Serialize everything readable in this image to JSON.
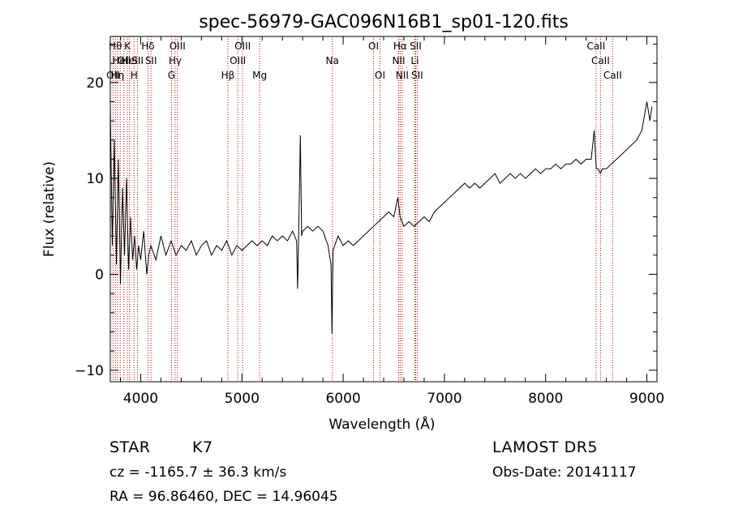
{
  "chart_data": {
    "type": "line",
    "title": "spec-56979-GAC096N16B1_sp01-120.fits",
    "xlabel": "Wavelength (Å)",
    "ylabel": "Flux (relative)",
    "xlim": [
      3700,
      9100
    ],
    "ylim": [
      -11.2,
      24.8
    ],
    "xticks": [
      4000,
      5000,
      6000,
      7000,
      8000,
      9000
    ],
    "yticks": [
      -10,
      0,
      10,
      20
    ],
    "grid": false,
    "line_color": "#000000",
    "marker_color": "#cc0000",
    "series": [
      {
        "x": [
          3700,
          3720,
          3740,
          3760,
          3780,
          3800,
          3820,
          3840,
          3860,
          3880,
          3900,
          3920,
          3940,
          3960,
          3980,
          4000,
          4030,
          4060,
          4080,
          4100,
          4150,
          4200,
          4250,
          4300,
          4350,
          4400,
          4450,
          4500,
          4550,
          4600,
          4650,
          4700,
          4750,
          4800,
          4850,
          4900,
          4950,
          5000,
          5050,
          5100,
          5150,
          5200,
          5250,
          5300,
          5350,
          5400,
          5450,
          5500,
          5540,
          5550,
          5560,
          5577,
          5590,
          5600,
          5650,
          5700,
          5750,
          5800,
          5850,
          5880,
          5890,
          5900,
          5950,
          6000,
          6050,
          6100,
          6150,
          6200,
          6250,
          6300,
          6350,
          6400,
          6450,
          6500,
          6540,
          6563,
          6580,
          6600,
          6650,
          6700,
          6750,
          6800,
          6850,
          6900,
          6950,
          7000,
          7050,
          7100,
          7150,
          7200,
          7250,
          7300,
          7350,
          7400,
          7450,
          7500,
          7550,
          7600,
          7650,
          7700,
          7750,
          7800,
          7850,
          7900,
          7950,
          8000,
          8050,
          8100,
          8150,
          8200,
          8250,
          8300,
          8350,
          8400,
          8450,
          8480,
          8500,
          8520,
          8540,
          8560,
          8600,
          8650,
          8700,
          8750,
          8800,
          8850,
          8900,
          8950,
          9000,
          9030,
          9050
        ],
        "y": [
          17.5,
          3.0,
          14.0,
          1.0,
          12.0,
          -1.0,
          9.0,
          2.0,
          10.0,
          0.5,
          6.0,
          1.5,
          4.0,
          0.5,
          3.0,
          1.5,
          4.5,
          0.0,
          2.0,
          3.0,
          1.5,
          4.0,
          2.0,
          3.5,
          2.0,
          3.0,
          2.5,
          3.5,
          2.0,
          3.0,
          3.5,
          2.0,
          3.0,
          2.5,
          3.5,
          2.0,
          3.0,
          2.5,
          3.0,
          3.5,
          3.0,
          3.5,
          3.0,
          4.0,
          3.5,
          4.0,
          3.5,
          4.5,
          3.5,
          -1.5,
          4.0,
          14.5,
          4.0,
          4.5,
          5.0,
          4.5,
          5.0,
          4.5,
          3.0,
          1.0,
          -6.2,
          2.5,
          4.0,
          3.0,
          3.5,
          3.0,
          3.5,
          4.0,
          4.5,
          5.0,
          5.5,
          6.0,
          6.5,
          6.0,
          8.0,
          6.0,
          5.5,
          5.0,
          5.5,
          5.0,
          5.5,
          6.0,
          5.5,
          6.5,
          7.0,
          7.5,
          8.0,
          8.5,
          9.0,
          9.5,
          9.0,
          9.5,
          9.0,
          9.5,
          10.0,
          10.5,
          9.5,
          10.0,
          10.5,
          10.0,
          10.5,
          10.0,
          10.5,
          11.0,
          10.5,
          11.0,
          11.0,
          11.5,
          11.0,
          11.5,
          11.5,
          12.0,
          11.5,
          12.0,
          12.0,
          15.0,
          11.0,
          11.0,
          10.5,
          11.0,
          11.0,
          11.5,
          12.0,
          12.5,
          13.0,
          13.5,
          14.0,
          15.0,
          18.0,
          16.0,
          17.5
        ]
      }
    ],
    "lines": [
      {
        "wl": 3727,
        "label": "OII",
        "row": 3
      },
      {
        "wl": 3750,
        "label": "Hθ",
        "row": 1
      },
      {
        "wl": 3771,
        "label": "Hη",
        "row": 3
      },
      {
        "wl": 3798,
        "label": "Hel",
        "row": 2
      },
      {
        "wl": 3835,
        "label": "OII",
        "row": 2
      },
      {
        "wl": 3869,
        "label": "K",
        "row": 1
      },
      {
        "wl": 3889,
        "label": "Hel",
        "row": 2
      },
      {
        "wl": 3934,
        "label": "H",
        "row": 3
      },
      {
        "wl": 3969,
        "label": "SII",
        "row": 2
      },
      {
        "wl": 4072,
        "label": "Hδ",
        "row": 1
      },
      {
        "wl": 4102,
        "label": "SII",
        "row": 2
      },
      {
        "wl": 4304,
        "label": "G",
        "row": 3
      },
      {
        "wl": 4340,
        "label": "Hγ",
        "row": 2
      },
      {
        "wl": 4363,
        "label": "OIII",
        "row": 1
      },
      {
        "wl": 4861,
        "label": "Hβ",
        "row": 3
      },
      {
        "wl": 4959,
        "label": "OIII",
        "row": 2
      },
      {
        "wl": 5007,
        "label": "OIII",
        "row": 1
      },
      {
        "wl": 5175,
        "label": "Mg",
        "row": 3
      },
      {
        "wl": 5893,
        "label": "Na",
        "row": 2
      },
      {
        "wl": 6300,
        "label": "OI",
        "row": 1
      },
      {
        "wl": 6364,
        "label": "OI",
        "row": 3
      },
      {
        "wl": 6548,
        "label": "NII",
        "row": 2
      },
      {
        "wl": 6563,
        "label": "Hα",
        "row": 1
      },
      {
        "wl": 6583,
        "label": "NII",
        "row": 3
      },
      {
        "wl": 6708,
        "label": "Li",
        "row": 2
      },
      {
        "wl": 6716,
        "label": "SII",
        "row": 1
      },
      {
        "wl": 6731,
        "label": "SII",
        "row": 3
      },
      {
        "wl": 8498,
        "label": "CaII",
        "row": 1
      },
      {
        "wl": 8542,
        "label": "CaII",
        "row": 2
      },
      {
        "wl": 8662,
        "label": "CaII",
        "row": 3
      }
    ]
  },
  "info": {
    "class": "STAR",
    "subclass": "K7",
    "survey": "LAMOST DR5",
    "cz": "cz = -1165.7 ± 36.3 km/s",
    "obs_date": "Obs-Date: 20141117",
    "coords": "RA =  96.86460, DEC =  14.96045"
  }
}
